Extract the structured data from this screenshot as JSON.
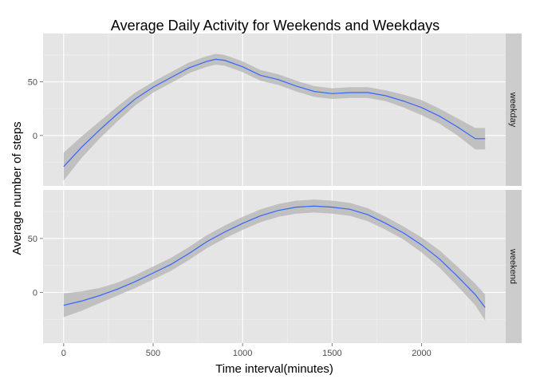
{
  "chart_data": {
    "type": "line",
    "title": "Average Daily Activity for Weekends and Weekdays",
    "xlabel": "Time interval(minutes)",
    "ylabel": "Average number of steps",
    "xlim": [
      -115,
      2470
    ],
    "x_ticks": [
      0,
      500,
      1000,
      1500,
      2000
    ],
    "y_ticks": [
      0,
      50
    ],
    "grid": true,
    "colors": {
      "line": "#3366ff",
      "band": "#b3b3b3",
      "panel": "#e5e5e5",
      "grid_major": "#ffffff",
      "strip": "#cccccc"
    },
    "panels": [
      {
        "strip": "weekday",
        "ylim": [
          -47,
          95
        ],
        "x": [
          0,
          100,
          200,
          300,
          400,
          500,
          600,
          700,
          800,
          850,
          900,
          1000,
          1100,
          1200,
          1300,
          1400,
          1500,
          1600,
          1700,
          1800,
          1900,
          2000,
          2100,
          2200,
          2300,
          2355
        ],
        "y": [
          -29,
          -11,
          5,
          20,
          34,
          45,
          54,
          63,
          69,
          71,
          70,
          64,
          56,
          52,
          46,
          41,
          39,
          40,
          40,
          37,
          32,
          26,
          18,
          8,
          -3,
          -3
        ],
        "lower": [
          -42,
          -21,
          -3,
          13,
          28,
          40,
          49,
          58,
          64,
          66,
          65,
          59,
          51,
          47,
          41,
          36,
          34,
          35,
          35,
          32,
          26,
          19,
          11,
          0,
          -13,
          -13
        ],
        "upper": [
          -16,
          -1,
          13,
          27,
          40,
          50,
          59,
          68,
          74,
          76,
          75,
          69,
          61,
          57,
          51,
          46,
          44,
          45,
          45,
          42,
          38,
          33,
          25,
          16,
          7,
          7
        ]
      },
      {
        "strip": "weekend",
        "ylim": [
          -47,
          95
        ],
        "x": [
          0,
          100,
          200,
          300,
          400,
          500,
          600,
          700,
          800,
          900,
          1000,
          1100,
          1200,
          1300,
          1400,
          1500,
          1600,
          1700,
          1800,
          1900,
          2000,
          2100,
          2200,
          2300,
          2355
        ],
        "y": [
          -12,
          -8,
          -3,
          3,
          10,
          18,
          26,
          36,
          47,
          56,
          64,
          71,
          76,
          79,
          80,
          79,
          77,
          72,
          64,
          55,
          44,
          31,
          15,
          -2,
          -14
        ],
        "lower": [
          -23,
          -17,
          -10,
          -3,
          4,
          12,
          20,
          30,
          41,
          50,
          58,
          65,
          70,
          73,
          74,
          73,
          71,
          66,
          58,
          49,
          37,
          23,
          6,
          -12,
          -26
        ],
        "upper": [
          -1,
          1,
          4,
          9,
          16,
          24,
          32,
          42,
          53,
          62,
          70,
          77,
          82,
          85,
          86,
          85,
          83,
          78,
          70,
          61,
          51,
          39,
          24,
          8,
          -2
        ]
      }
    ]
  }
}
